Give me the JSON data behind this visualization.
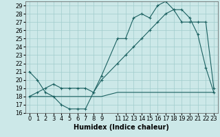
{
  "xlabel": "Humidex (Indice chaleur)",
  "bg_color": "#cce8e8",
  "line_color": "#1a6060",
  "x_hours": [
    0,
    1,
    2,
    3,
    4,
    5,
    6,
    7,
    8,
    9,
    11,
    12,
    13,
    14,
    15,
    16,
    17,
    18,
    19,
    20,
    21,
    22,
    23
  ],
  "line1_y": [
    21,
    20,
    18.5,
    18,
    17,
    16.5,
    16.5,
    16.5,
    18.5,
    20.5,
    25,
    25,
    27.5,
    28,
    27.5,
    29,
    29.5,
    28.5,
    28.5,
    27.5,
    25.5,
    21.5,
    18.5
  ],
  "line2_y": [
    18,
    18,
    18,
    18,
    18,
    18,
    18,
    18,
    18,
    18,
    18.5,
    18.5,
    18.5,
    18.5,
    18.5,
    18.5,
    18.5,
    18.5,
    18.5,
    18.5,
    18.5,
    18.5,
    18.5
  ],
  "line3_y": [
    18,
    18.5,
    19,
    19.5,
    19,
    19,
    19,
    19,
    18.5,
    20,
    22,
    23,
    24,
    25,
    26,
    27,
    28,
    28.5,
    27,
    27,
    27,
    27,
    19
  ],
  "ylim": [
    16,
    29.5
  ],
  "yticks": [
    16,
    17,
    18,
    19,
    20,
    21,
    22,
    23,
    24,
    25,
    26,
    27,
    28,
    29
  ],
  "xticks": [
    0,
    1,
    2,
    3,
    4,
    5,
    6,
    7,
    8,
    9,
    11,
    12,
    13,
    14,
    15,
    16,
    17,
    18,
    19,
    20,
    21,
    22,
    23
  ],
  "grid_color": "#a0cccc",
  "tick_fontsize": 6,
  "xlabel_fontsize": 7
}
